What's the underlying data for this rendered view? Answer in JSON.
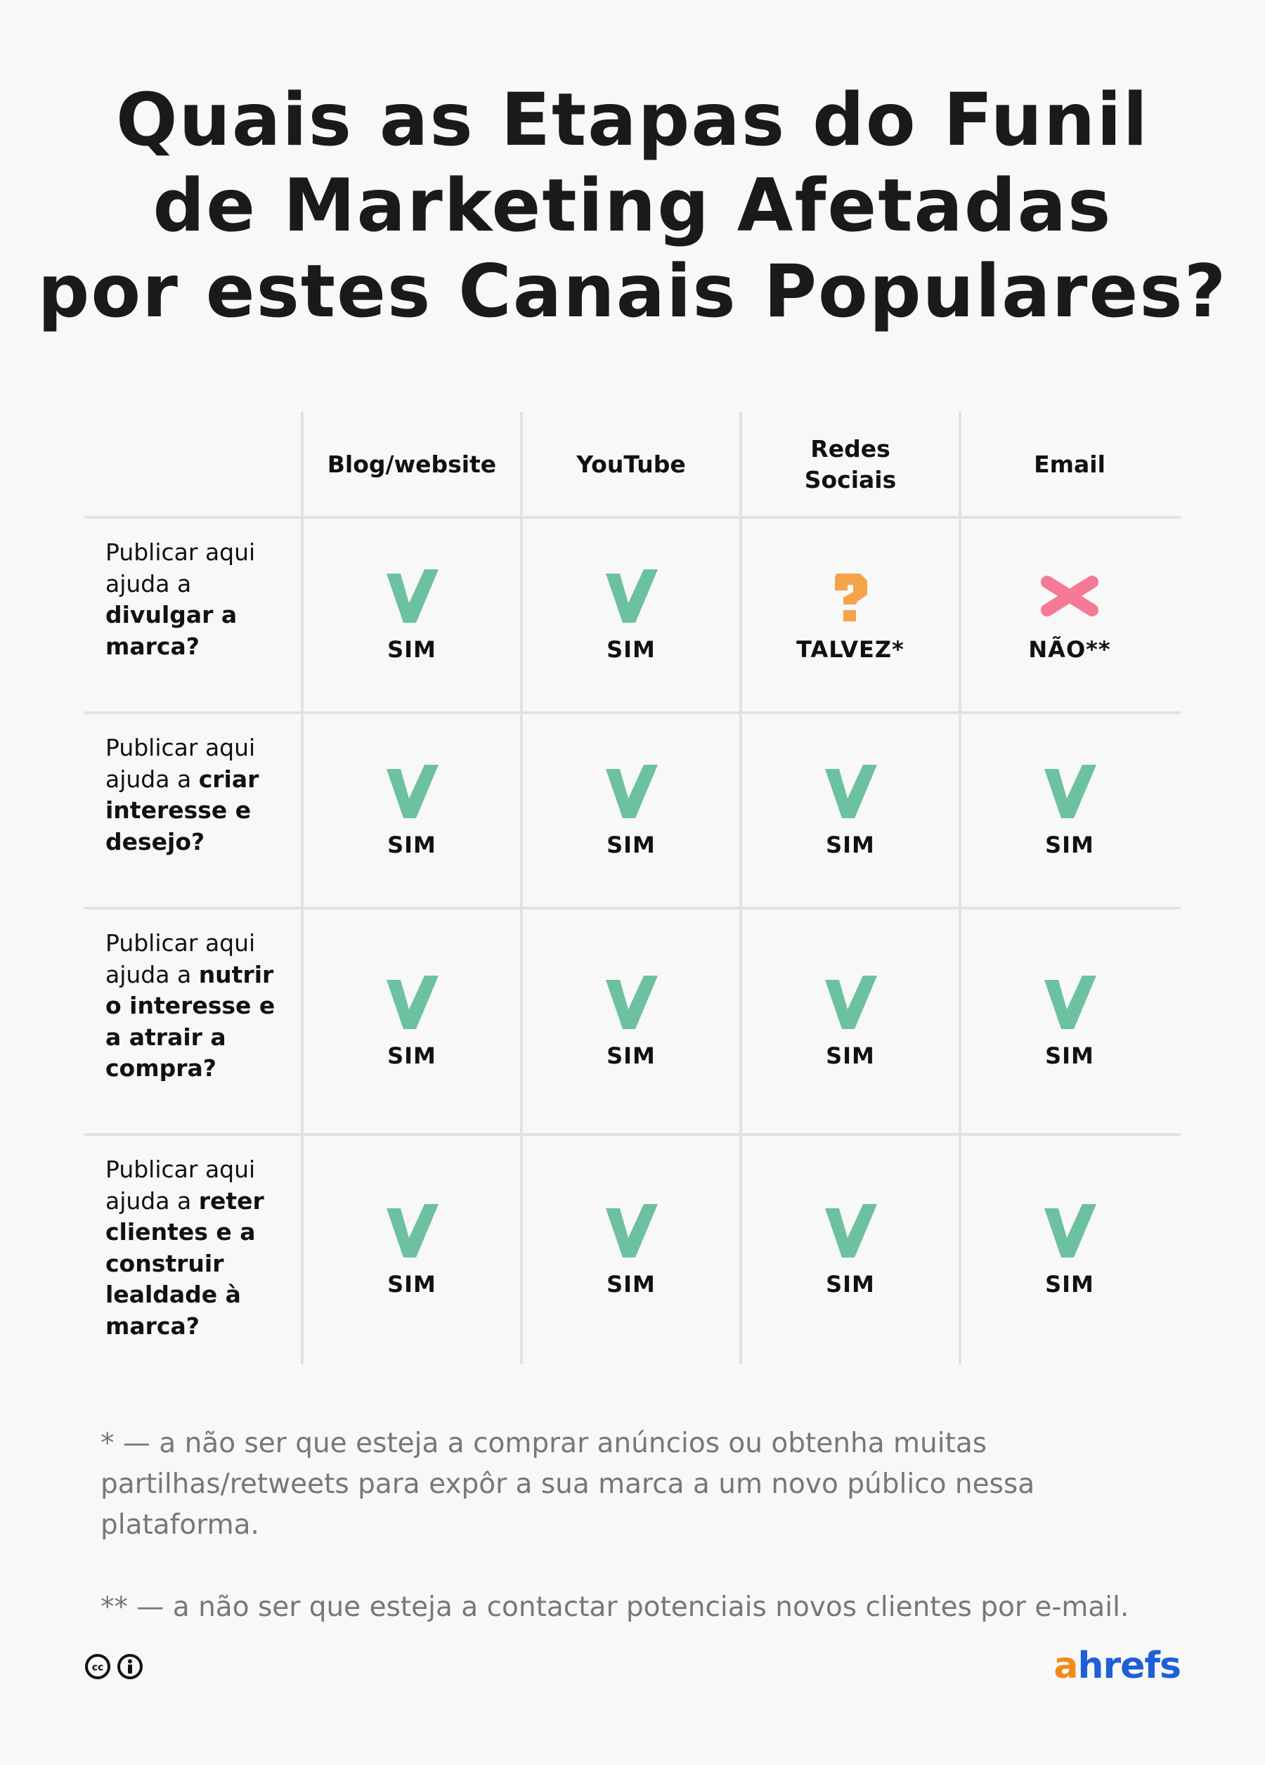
{
  "title": {
    "line1": "Quais as Etapas do Funil",
    "line2": "de Marketing Afetadas",
    "line3": "por estes Canais Populares?"
  },
  "columns": [
    {
      "label": "Blog/website"
    },
    {
      "label": "YouTube"
    },
    {
      "label": "Redes Sociais"
    },
    {
      "label": "Email"
    }
  ],
  "rows": [
    {
      "parts": [
        {
          "text": "Publicar aqui ajuda a ",
          "bold": false
        },
        {
          "text": "divulgar a marca?",
          "bold": true
        }
      ],
      "cells": [
        {
          "status": "yes",
          "label": "SIM"
        },
        {
          "status": "yes",
          "label": "SIM"
        },
        {
          "status": "maybe",
          "label": "TALVEZ*"
        },
        {
          "status": "no",
          "label": "NÃO**"
        }
      ]
    },
    {
      "parts": [
        {
          "text": "Publicar aqui ajuda a ",
          "bold": false
        },
        {
          "text": "criar interesse e desejo?",
          "bold": true
        }
      ],
      "cells": [
        {
          "status": "yes",
          "label": "SIM"
        },
        {
          "status": "yes",
          "label": "SIM"
        },
        {
          "status": "yes",
          "label": "SIM"
        },
        {
          "status": "yes",
          "label": "SIM"
        }
      ]
    },
    {
      "parts": [
        {
          "text": "Publicar aqui ajuda a ",
          "bold": false
        },
        {
          "text": "nutrir o interesse e a atrair a compra?",
          "bold": true
        }
      ],
      "cells": [
        {
          "status": "yes",
          "label": "SIM"
        },
        {
          "status": "yes",
          "label": "SIM"
        },
        {
          "status": "yes",
          "label": "SIM"
        },
        {
          "status": "yes",
          "label": "SIM"
        }
      ]
    },
    {
      "parts": [
        {
          "text": "Publicar aqui ajuda a ",
          "bold": false
        },
        {
          "text": "reter clientes e a construir lealdade à marca?",
          "bold": true
        }
      ],
      "cells": [
        {
          "status": "yes",
          "label": "SIM"
        },
        {
          "status": "yes",
          "label": "SIM"
        },
        {
          "status": "yes",
          "label": "SIM"
        },
        {
          "status": "yes",
          "label": "SIM"
        }
      ]
    }
  ],
  "footnotes": {
    "one": "* — a não ser que esteja a comprar anúncios ou obtenha muitas partilhas/retweets para expôr a sua marca a um novo público nessa plataforma.",
    "two": "** — a não ser que esteja a contactar potenciais novos clientes por e-mail."
  },
  "colors": {
    "yes": "#6cc1a0",
    "maybe": "#f5a34a",
    "no": "#f47a95",
    "logo_a": "#f28a1a",
    "logo_rest": "#1f5fd6"
  },
  "icons": {
    "yes": "check-icon",
    "maybe": "question-icon",
    "no": "cross-icon",
    "license": [
      "creative-commons-icon",
      "attribution-icon"
    ]
  },
  "logo": {
    "a": "a",
    "rest": "hrefs"
  }
}
